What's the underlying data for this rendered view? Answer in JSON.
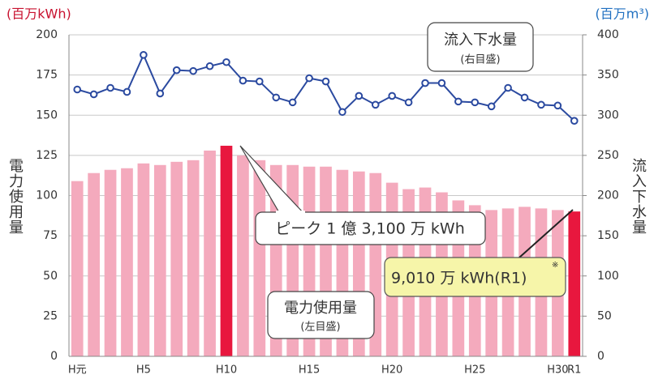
{
  "chart_data": {
    "type": "bar",
    "categories": [
      "H元",
      null,
      null,
      null,
      "H5",
      null,
      null,
      null,
      null,
      "H10",
      null,
      null,
      null,
      null,
      "H15",
      null,
      null,
      null,
      null,
      "H20",
      null,
      null,
      null,
      null,
      "H25",
      null,
      null,
      null,
      null,
      "H30",
      "R1"
    ],
    "series": [
      {
        "name": "電力使用量",
        "type": "bar",
        "color": "#f4aabd",
        "colors": [
          "#f4aabd",
          "#f4aabd",
          "#f4aabd",
          "#f4aabd",
          "#f4aabd",
          "#f4aabd",
          "#f4aabd",
          "#f4aabd",
          "#f4aabd",
          "#e8173e",
          "#f4aabd",
          "#f4aabd",
          "#f4aabd",
          "#f4aabd",
          "#f4aabd",
          "#f4aabd",
          "#f4aabd",
          "#f4aabd",
          "#f4aabd",
          "#f4aabd",
          "#f4aabd",
          "#f4aabd",
          "#f4aabd",
          "#f4aabd",
          "#f4aabd",
          "#f4aabd",
          "#f4aabd",
          "#f4aabd",
          "#f4aabd",
          "#f4aabd",
          "#e8173e"
        ],
        "values": [
          109,
          114,
          116,
          117,
          120,
          119,
          121,
          122,
          128,
          131,
          125,
          122,
          119,
          119,
          118,
          118,
          116,
          115,
          114,
          108,
          104,
          105,
          102,
          97,
          94,
          91,
          92,
          93,
          92,
          91,
          90.1
        ]
      },
      {
        "name": "流入下水量",
        "type": "line",
        "axis": "y2",
        "color": "#2b4aa0",
        "values": [
          332,
          326,
          334,
          329,
          375,
          327,
          356,
          355,
          361,
          366,
          343,
          342,
          322,
          316,
          346,
          342,
          304,
          324,
          313,
          324,
          316,
          340,
          340,
          317,
          316,
          311,
          334,
          322,
          313,
          312,
          293
        ]
      }
    ],
    "ylabel": "電力使用量",
    "y2label": "流入下水量",
    "y_unit": "(百万kWh)",
    "y2_unit": "(百万m³)",
    "ylim": [
      0,
      200
    ],
    "yticks": [
      0,
      25,
      50,
      75,
      100,
      125,
      150,
      175,
      200
    ],
    "y2lim": [
      0,
      400
    ],
    "y2ticks": [
      0,
      50,
      100,
      150,
      200,
      250,
      300,
      350,
      400
    ],
    "grid": true,
    "annotations": {
      "line_scale_note": "(右目盛)",
      "bar_scale_note": "(左目盛)",
      "peak": "ピーク 1 億 3,100 万 kWh",
      "latest": "9,010 万 kWh(R1)",
      "latest_mark": "※"
    }
  }
}
